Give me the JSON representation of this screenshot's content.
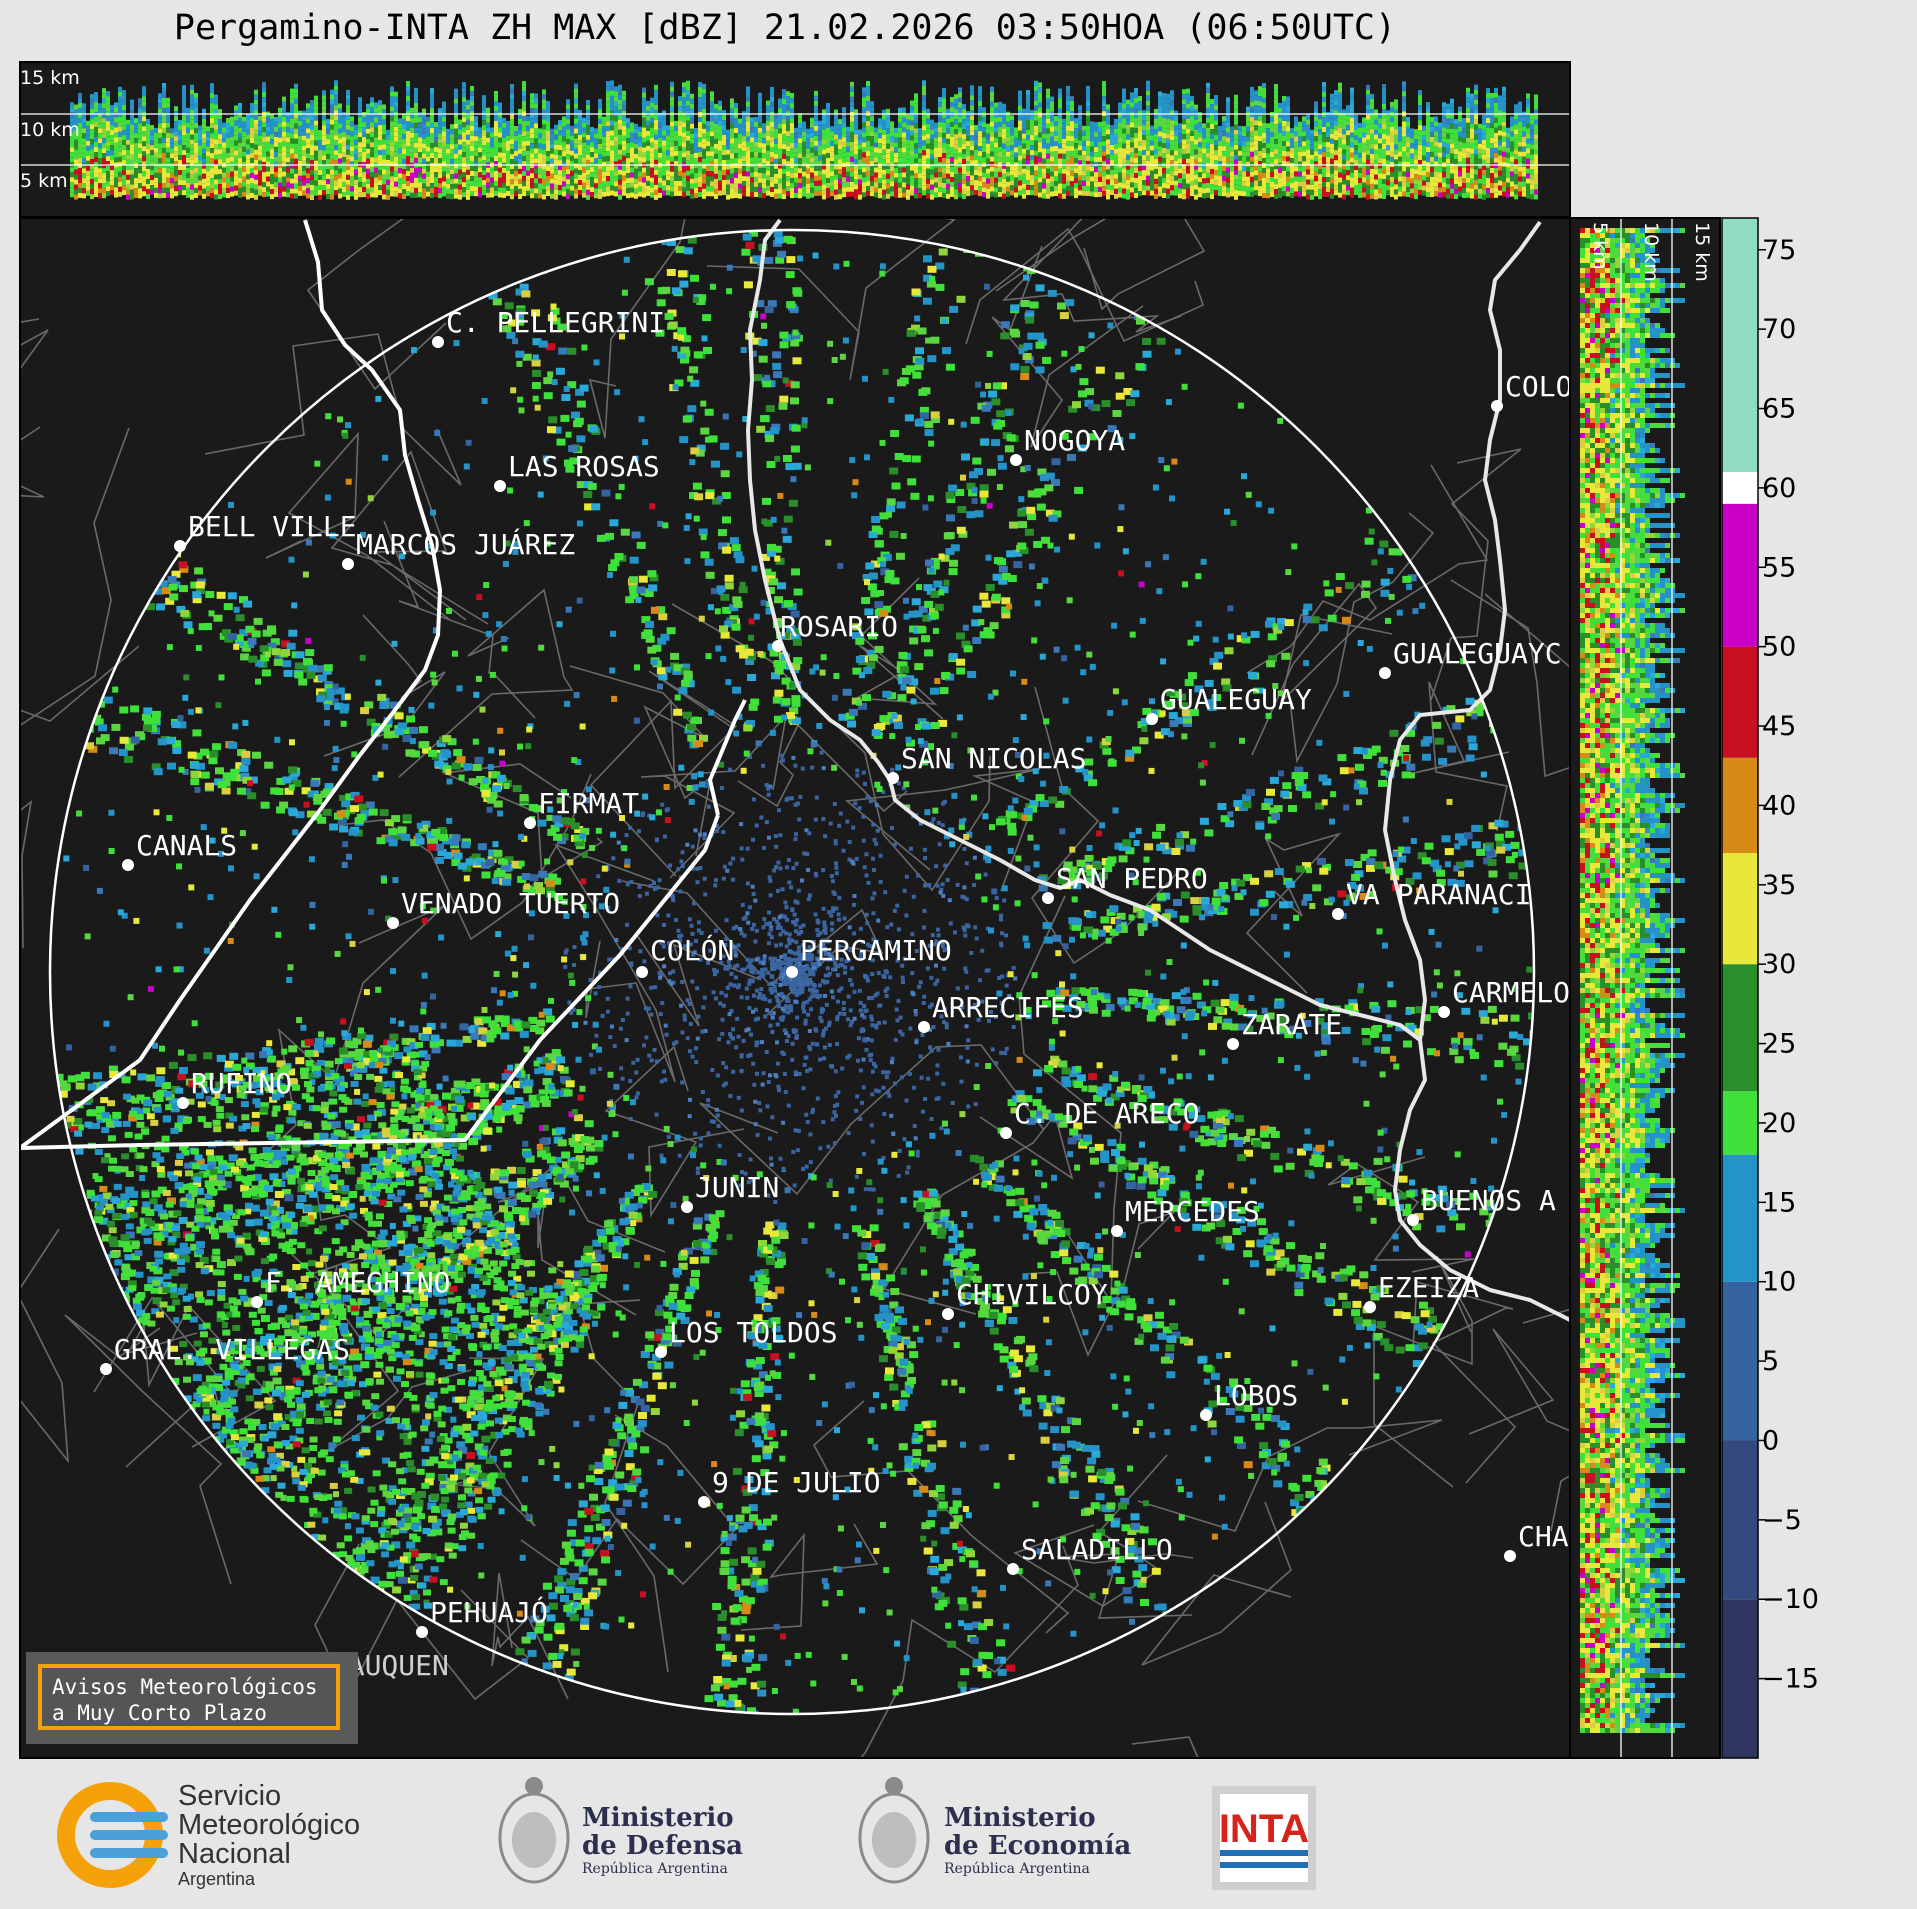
{
  "title": "Pergamino-INTA ZH MAX [dBZ] 21.02.2026 03:50HOA (06:50UTC)",
  "height_axis_labels": [
    "15 km",
    "10 km",
    "5 km"
  ],
  "colorbar": {
    "ticks": [
      "75",
      "70",
      "65",
      "60",
      "55",
      "50",
      "45",
      "40",
      "35",
      "30",
      "25",
      "20",
      "15",
      "10",
      "5",
      "0",
      "−5",
      "−10",
      "−15"
    ],
    "bands": [
      {
        "from": -20,
        "to": -10,
        "color": "#2e3560"
      },
      {
        "from": -10,
        "to": 0,
        "color": "#34497e"
      },
      {
        "from": 0,
        "to": 10,
        "color": "#3563a0"
      },
      {
        "from": 10,
        "to": 18,
        "color": "#2592c8"
      },
      {
        "from": 18,
        "to": 22,
        "color": "#3fe03a"
      },
      {
        "from": 22,
        "to": 30,
        "color": "#2a8e2a"
      },
      {
        "from": 30,
        "to": 37,
        "color": "#e8e83a"
      },
      {
        "from": 37,
        "to": 43,
        "color": "#d88a18"
      },
      {
        "from": 43,
        "to": 50,
        "color": "#c81020"
      },
      {
        "from": 50,
        "to": 59,
        "color": "#c800c8"
      },
      {
        "from": 59,
        "to": 61,
        "color": "#ffffff"
      },
      {
        "from": 61,
        "to": 77,
        "color": "#8fdcc0"
      }
    ]
  },
  "cities": [
    {
      "name": "PERGAMINO",
      "label": "PERGAMINO"
    },
    {
      "name": "C. PELLEGRINI",
      "label": "C. PELLEGRINI"
    },
    {
      "name": "LAS ROSAS",
      "label": "LAS ROSAS"
    },
    {
      "name": "NOGOYA",
      "label": "NOGOYA"
    },
    {
      "name": "BELL VILLE",
      "label": "BELL VILLE"
    },
    {
      "name": "MARCOS JUÁREZ",
      "label": "MARCOS JUÁREZ"
    },
    {
      "name": "COLÓN (E.R.)",
      "label": "COLO"
    },
    {
      "name": "ROSARIO",
      "label": "ROSARIO"
    },
    {
      "name": "GUALEGUAYCHÚ",
      "label": "GUALEGUAYC"
    },
    {
      "name": "GUALEGUAY",
      "label": "GUALEGUAY"
    },
    {
      "name": "SAN NICOLAS",
      "label": "SAN NICOLAS"
    },
    {
      "name": "FIRMAT",
      "label": "FIRMAT"
    },
    {
      "name": "CANALS",
      "label": "CANALS"
    },
    {
      "name": "SAN PEDRO",
      "label": "SAN PEDRO"
    },
    {
      "name": "VENADO TUERTO",
      "label": "VENADO TUERTO"
    },
    {
      "name": "VAL. PARANACITO",
      "label": "VA  PARANACI"
    },
    {
      "name": "COLÓN",
      "label": "COLÓN"
    },
    {
      "name": "CARMELO",
      "label": "CARMELO"
    },
    {
      "name": "ARRECIFES",
      "label": "ARRECIFES"
    },
    {
      "name": "ZARATE",
      "label": "ZARATE"
    },
    {
      "name": "RUFINO",
      "label": "RUFINO"
    },
    {
      "name": "C. DE ARECO",
      "label": "C. DE ARECO"
    },
    {
      "name": "JUNIN",
      "label": "JUNIN"
    },
    {
      "name": "BUENOS AIRES",
      "label": "BUENOS A"
    },
    {
      "name": "MERCEDES",
      "label": "MERCEDES"
    },
    {
      "name": "F. AMEGHINO",
      "label": "F. AMEGHINO"
    },
    {
      "name": "EZEIZA",
      "label": "EZEIZA"
    },
    {
      "name": "CHIVILCOY",
      "label": "CHIVILCOY"
    },
    {
      "name": "GRAL. VILLEGAS",
      "label": "GRAL. VILLEGAS"
    },
    {
      "name": "LOS TOLDOS",
      "label": "LOS TOLDOS"
    },
    {
      "name": "LOBOS",
      "label": "LOBOS"
    },
    {
      "name": "9 DE JULIO",
      "label": "9 DE JULIO"
    },
    {
      "name": "CHASCOMÚS",
      "label": "CHA"
    },
    {
      "name": "SALADILLO",
      "label": "SALADILLO"
    },
    {
      "name": "PEHUAJÓ",
      "label": "PEHUAJÓ"
    },
    {
      "name": "TRENQUE LAUQUEN",
      "label": "TRENQUE LAUQUEN"
    }
  ],
  "aviso": {
    "line1": "Avisos Meteorológicos",
    "line2": "a Muy Corto Plazo"
  },
  "logos": {
    "smn": {
      "line1": "Servicio",
      "line2": "Meteorológico",
      "line3": "Nacional",
      "line4": "Argentina"
    },
    "defensa": {
      "line1": "Ministerio",
      "line2": "de Defensa",
      "line3": "República Argentina"
    },
    "economia": {
      "line1": "Ministerio",
      "line2": "de Economía",
      "line3": "República Argentina"
    },
    "inta": {
      "text": "INTA"
    }
  }
}
